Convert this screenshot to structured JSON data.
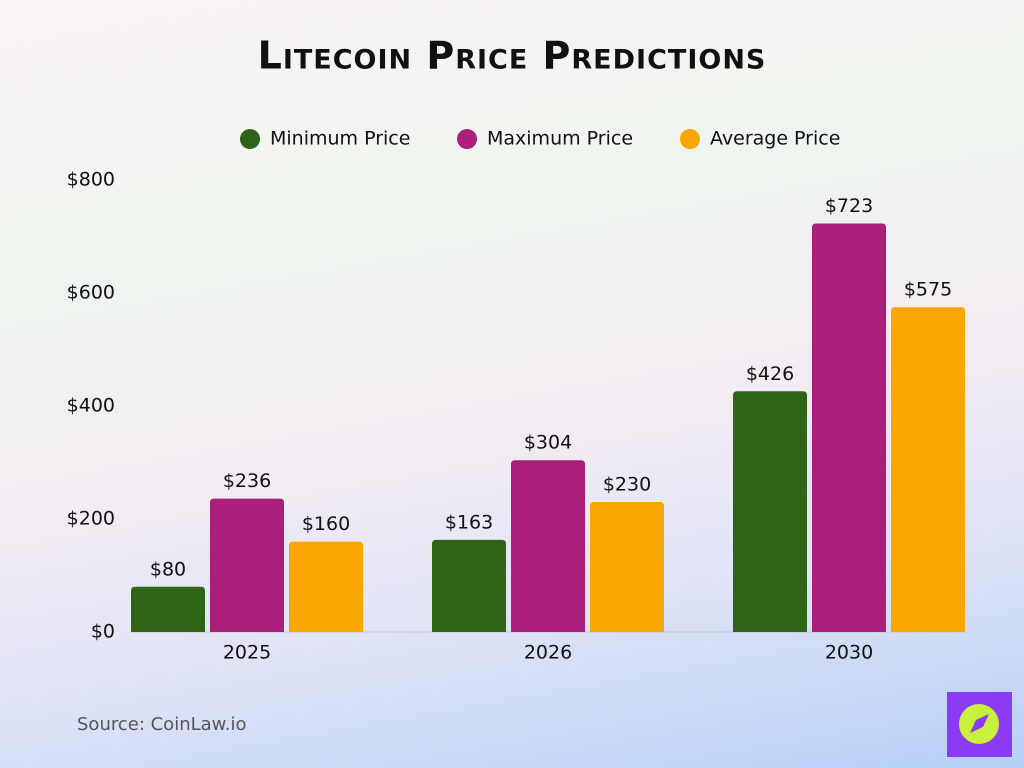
{
  "chart_data": {
    "type": "bar",
    "title": "Litecoin Price Predictions",
    "categories": [
      "2025",
      "2026",
      "2030"
    ],
    "series": [
      {
        "name": "Minimum Price",
        "color": "#2f6417",
        "values": [
          80,
          163,
          426
        ],
        "value_labels": [
          "$80",
          "$163",
          "$426"
        ]
      },
      {
        "name": "Maximum Price",
        "color": "#a91f7a",
        "values": [
          236,
          304,
          723
        ],
        "value_labels": [
          "$236",
          "$304",
          "$723"
        ]
      },
      {
        "name": "Average Price",
        "color": "#f9a602",
        "values": [
          160,
          230,
          575
        ],
        "value_labels": [
          "$160",
          "$230",
          "$575"
        ]
      }
    ],
    "ylim": [
      0,
      800
    ],
    "yticks": [
      {
        "value": 0,
        "label": "$0"
      },
      {
        "value": 200,
        "label": "$200"
      },
      {
        "value": 400,
        "label": "$400"
      },
      {
        "value": 600,
        "label": "$600"
      },
      {
        "value": 800,
        "label": "$800"
      }
    ],
    "legend": "top",
    "source": "Source: CoinLaw.io"
  }
}
